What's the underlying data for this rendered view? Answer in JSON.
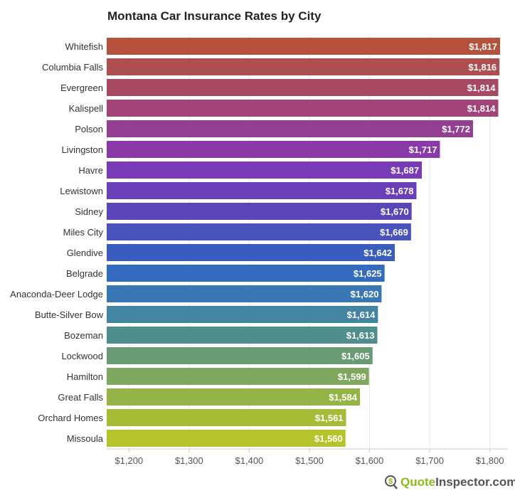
{
  "chart_data": {
    "type": "bar",
    "orientation": "horizontal",
    "title": "Montana Car Insurance Rates by City",
    "categories": [
      "Whitefish",
      "Columbia Falls",
      "Evergreen",
      "Kalispell",
      "Polson",
      "Livingston",
      "Havre",
      "Lewistown",
      "Sidney",
      "Miles City",
      "Glendive",
      "Belgrade",
      "Anaconda-Deer Lodge",
      "Butte-Silver Bow",
      "Bozeman",
      "Lockwood",
      "Hamilton",
      "Great Falls",
      "Orchard Homes",
      "Missoula"
    ],
    "values": [
      1817,
      1816,
      1814,
      1814,
      1772,
      1717,
      1687,
      1678,
      1670,
      1669,
      1642,
      1625,
      1620,
      1614,
      1613,
      1605,
      1599,
      1584,
      1561,
      1560
    ],
    "data_labels": [
      "$1,817",
      "$1,816",
      "$1,814",
      "$1,814",
      "$1,772",
      "$1,717",
      "$1,687",
      "$1,678",
      "$1,670",
      "$1,669",
      "$1,642",
      "$1,625",
      "$1,620",
      "$1,614",
      "$1,613",
      "$1,605",
      "$1,599",
      "$1,584",
      "$1,561",
      "$1,560"
    ],
    "colors": [
      "#b5523b",
      "#ad4f4f",
      "#a84862",
      "#a24478",
      "#953f92",
      "#8a3aa8",
      "#7a3bb8",
      "#6a40b8",
      "#5a46b8",
      "#4a52bc",
      "#3a5cbf",
      "#336bbf",
      "#3a78b5",
      "#4284a2",
      "#4e8e8c",
      "#699a74",
      "#7fa75d",
      "#94b447",
      "#a6bc36",
      "#b5c42a"
    ],
    "xlim": [
      1163,
      1830
    ],
    "xticks": [
      1200,
      1300,
      1400,
      1500,
      1600,
      1700,
      1800
    ],
    "xtick_labels": [
      "$1,200",
      "$1,300",
      "$1,400",
      "$1,500",
      "$1,600",
      "$1,700",
      "$1,800"
    ],
    "grid": true,
    "xlabel": "",
    "ylabel": ""
  },
  "logo": {
    "text_green": "Quote",
    "text_gray": "Inspector.com"
  }
}
